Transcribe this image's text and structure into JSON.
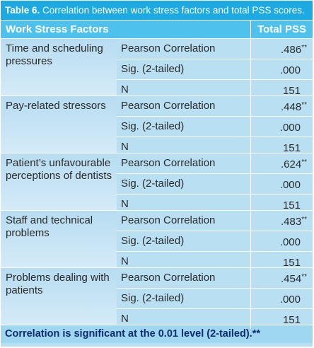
{
  "caption": {
    "label": "Table 6.",
    "text": "Correlation between work stress factors and total PSS scores."
  },
  "header": {
    "factor_col": "Work Stress Factors",
    "total_col": "Total PSS"
  },
  "groups": [
    {
      "factor": "Time and scheduling pressures",
      "rows": [
        {
          "measure": "Pearson Correlation",
          "value": ".486",
          "mark": "**"
        },
        {
          "measure": "Sig. (2-tailed)",
          "value": ".000",
          "mark": ""
        },
        {
          "measure": "N",
          "value": "151",
          "mark": ""
        }
      ]
    },
    {
      "factor": "Pay-related stressors",
      "rows": [
        {
          "measure": "Pearson Correlation",
          "value": ".448",
          "mark": "**"
        },
        {
          "measure": "Sig. (2-tailed)",
          "value": ".000",
          "mark": ""
        },
        {
          "measure": "N",
          "value": "151",
          "mark": ""
        }
      ]
    },
    {
      "factor": "Patient’s unfavourable perceptions of dentists",
      "rows": [
        {
          "measure": "Pearson Correlation",
          "value": ".624",
          "mark": "**"
        },
        {
          "measure": "Sig. (2-tailed)",
          "value": ".000",
          "mark": ""
        },
        {
          "measure": "N",
          "value": "151",
          "mark": ""
        }
      ]
    },
    {
      "factor": "Staff and technical problems",
      "rows": [
        {
          "measure": "Pearson Correlation",
          "value": ".483",
          "mark": "**"
        },
        {
          "measure": "Sig. (2-tailed)",
          "value": ".000",
          "mark": ""
        },
        {
          "measure": "N",
          "value": "151",
          "mark": ""
        }
      ]
    },
    {
      "factor": "Problems dealing with patients",
      "rows": [
        {
          "measure": "Pearson Correlation",
          "value": ".454",
          "mark": "**"
        },
        {
          "measure": "Sig. (2-tailed)",
          "value": ".000",
          "mark": ""
        },
        {
          "measure": "N",
          "value": "151",
          "mark": ""
        }
      ]
    }
  ],
  "footer": {
    "note": "Correlation is significant at the 0.01 level (2-tailed).**"
  },
  "colors": {
    "caption_bg": "#1daae2",
    "header_bg": "#4ec1ec",
    "body_bg": "#b9dff3",
    "footer_text": "#0f2d6e"
  }
}
